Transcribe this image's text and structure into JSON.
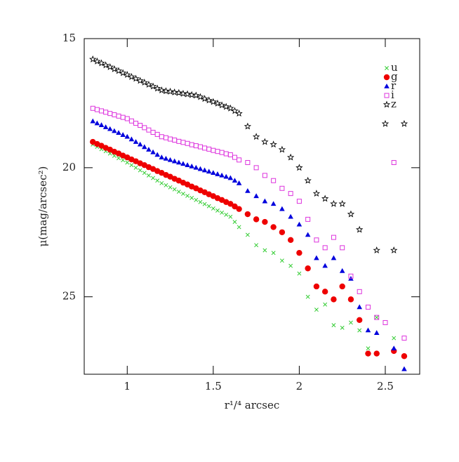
{
  "chart_data": {
    "type": "scatter",
    "xlabel": "r¹/⁴ arcsec",
    "ylabel": "μ(mag/arcsec²)",
    "x": [
      0.8,
      0.825,
      0.85,
      0.875,
      0.9,
      0.925,
      0.95,
      0.975,
      1.0,
      1.025,
      1.05,
      1.075,
      1.1,
      1.125,
      1.15,
      1.175,
      1.2,
      1.225,
      1.25,
      1.275,
      1.3,
      1.325,
      1.35,
      1.375,
      1.4,
      1.425,
      1.45,
      1.475,
      1.5,
      1.525,
      1.55,
      1.575,
      1.6,
      1.625,
      1.65,
      1.7,
      1.75,
      1.8,
      1.85,
      1.9,
      1.95,
      2.0,
      2.05,
      2.1,
      2.15,
      2.2,
      2.25,
      2.3,
      2.35,
      2.4,
      2.45,
      2.5,
      2.55,
      2.61
    ],
    "series": [
      {
        "name": "u",
        "color": "#33cc33",
        "marker": "x",
        "values": [
          19.1,
          19.19,
          19.28,
          19.36,
          19.45,
          19.54,
          19.63,
          19.71,
          19.8,
          19.9,
          20.0,
          20.1,
          20.2,
          20.3,
          20.4,
          20.5,
          20.6,
          20.68,
          20.76,
          20.84,
          20.93,
          21.01,
          21.09,
          21.17,
          21.25,
          21.33,
          21.41,
          21.49,
          21.58,
          21.66,
          21.74,
          21.82,
          21.9,
          22.1,
          22.3,
          22.6,
          23.0,
          23.2,
          23.3,
          23.6,
          23.8,
          24.1,
          25.0,
          25.5,
          25.3,
          26.1,
          26.2,
          26.0,
          26.3,
          27.0,
          25.8,
          null,
          26.6,
          null
        ]
      },
      {
        "name": "g",
        "color": "#ee0000",
        "marker": "circle",
        "values": [
          19.0,
          19.08,
          19.15,
          19.23,
          19.3,
          19.38,
          19.45,
          19.53,
          19.6,
          19.68,
          19.75,
          19.83,
          19.9,
          19.98,
          20.05,
          20.13,
          20.2,
          20.28,
          20.35,
          20.43,
          20.5,
          20.58,
          20.65,
          20.73,
          20.8,
          20.88,
          20.95,
          21.03,
          21.1,
          21.18,
          21.25,
          21.33,
          21.4,
          21.5,
          21.6,
          21.8,
          22.0,
          22.1,
          22.3,
          22.5,
          22.8,
          23.3,
          23.9,
          24.6,
          24.8,
          25.1,
          24.6,
          25.1,
          25.9,
          27.2,
          27.2,
          null,
          27.1,
          27.3
        ]
      },
      {
        "name": "r",
        "color": "#0000dd",
        "marker": "triangle",
        "values": [
          18.2,
          18.28,
          18.35,
          18.43,
          18.5,
          18.58,
          18.65,
          18.73,
          18.8,
          18.9,
          19.0,
          19.1,
          19.2,
          19.3,
          19.4,
          19.5,
          19.6,
          19.65,
          19.7,
          19.75,
          19.8,
          19.85,
          19.9,
          19.95,
          20.0,
          20.05,
          20.1,
          20.15,
          20.2,
          20.25,
          20.3,
          20.35,
          20.4,
          20.5,
          20.6,
          20.9,
          21.1,
          21.3,
          21.4,
          21.6,
          21.9,
          22.2,
          22.6,
          23.5,
          23.8,
          23.5,
          24.0,
          24.3,
          25.4,
          26.3,
          26.4,
          null,
          27.0,
          27.8
        ]
      },
      {
        "name": "i",
        "color": "#dd33dd",
        "marker": "square",
        "values": [
          17.7,
          17.75,
          17.8,
          17.85,
          17.9,
          17.95,
          18.0,
          18.05,
          18.1,
          18.19,
          18.28,
          18.36,
          18.45,
          18.54,
          18.63,
          18.71,
          18.8,
          18.84,
          18.89,
          18.93,
          18.98,
          19.02,
          19.06,
          19.11,
          19.15,
          19.19,
          19.24,
          19.28,
          19.33,
          19.37,
          19.41,
          19.46,
          19.5,
          19.6,
          19.7,
          19.8,
          20.0,
          20.3,
          20.5,
          20.8,
          21.0,
          21.3,
          22.0,
          22.8,
          23.1,
          22.7,
          23.1,
          24.2,
          24.8,
          25.4,
          25.8,
          26.0,
          19.8,
          26.6
        ]
      },
      {
        "name": "z",
        "color": "#000000",
        "marker": "star",
        "values": [
          15.8,
          15.88,
          15.95,
          16.03,
          16.1,
          16.18,
          16.25,
          16.33,
          16.4,
          16.48,
          16.55,
          16.63,
          16.7,
          16.78,
          16.85,
          16.93,
          17.0,
          17.03,
          17.05,
          17.08,
          17.1,
          17.13,
          17.15,
          17.18,
          17.2,
          17.26,
          17.33,
          17.39,
          17.45,
          17.51,
          17.58,
          17.64,
          17.7,
          17.8,
          17.9,
          18.4,
          18.8,
          19.0,
          19.1,
          19.3,
          19.6,
          20.0,
          20.5,
          21.0,
          21.2,
          21.4,
          21.4,
          21.8,
          22.4,
          null,
          23.2,
          18.3,
          23.2,
          18.3
        ]
      }
    ],
    "xlim": [
      0.75,
      2.7
    ],
    "xticks": [
      1,
      1.5,
      2,
      2.5
    ],
    "ylim": [
      28,
      15
    ],
    "yticks": [
      15,
      20,
      25
    ],
    "legend": "upper right"
  }
}
